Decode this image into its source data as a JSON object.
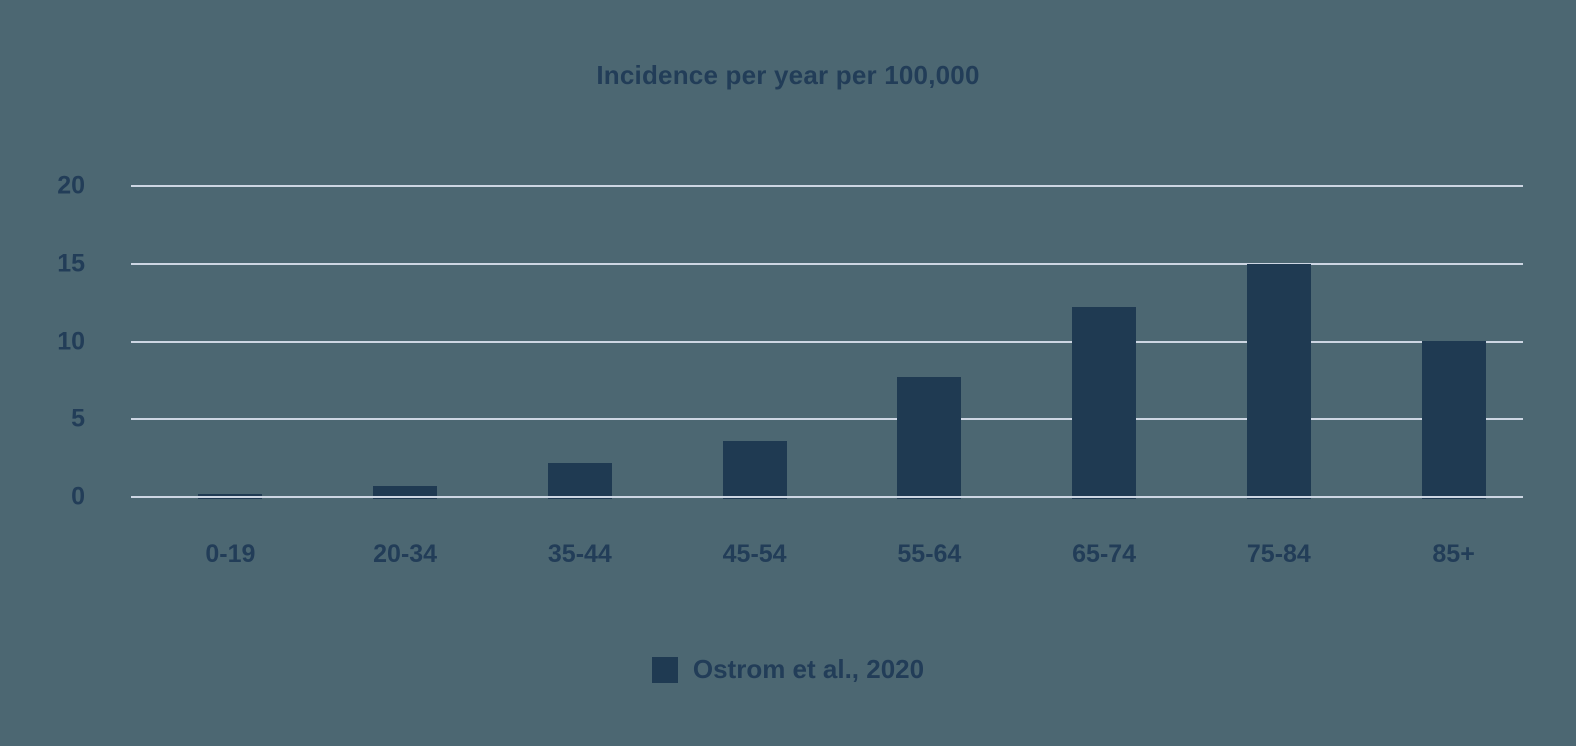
{
  "colors": {
    "background": "#4C6772",
    "bar": "#1F3A52",
    "text": "#223D58",
    "gridline": "#CDD6E3"
  },
  "chart_data": {
    "type": "bar",
    "title": "Incidence per year per 100,000",
    "categories": [
      "0-19",
      "20-34",
      "35-44",
      "45-54",
      "55-64",
      "65-74",
      "75-84",
      "85+"
    ],
    "series": [
      {
        "name": "Ostrom et al., 2020",
        "values": [
          0.35,
          0.8,
          2.3,
          3.7,
          7.8,
          12.3,
          15,
          10.1
        ]
      }
    ],
    "xlabel": "",
    "ylabel": "",
    "ylim": [
      0,
      20
    ],
    "yticks": [
      0,
      5,
      10,
      15,
      20
    ],
    "grid": true,
    "legend_position": "bottom"
  }
}
